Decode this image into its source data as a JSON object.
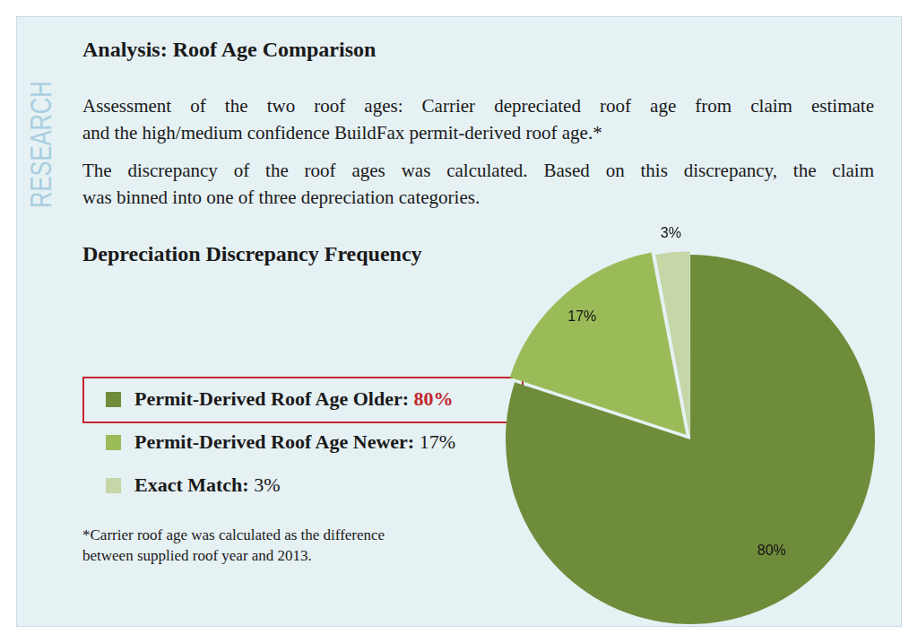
{
  "side_label": "RESEARCH",
  "heading": "Analysis: Roof Age Comparison",
  "paragraphs": [
    [
      "Assessment of the two roof ages: Carrier depreciated roof age from claim estimate",
      "and the high/medium confidence BuildFax permit-derived roof age.*"
    ],
    [
      "The discrepancy of the roof ages was calculated. Based on this discrepancy, the claim",
      "was binned into one of three depreciation categories."
    ]
  ],
  "chart_data": {
    "type": "pie",
    "title": "Depreciation Discrepancy Frequency",
    "categories": [
      "Permit-Derived Roof Age Older:",
      "Permit-Derived Roof Age Newer:",
      "Exact Match:"
    ],
    "values": [
      80,
      17,
      3
    ],
    "value_labels": [
      "80%",
      "17%",
      "3%"
    ],
    "colors": [
      "#6f8c3b",
      "#9bbb59",
      "#c5d6a7"
    ],
    "data_labels": true,
    "legend": "left"
  },
  "footnote": [
    "*Carrier roof age was calculated as the difference",
    "between supplied roof year and 2013."
  ]
}
